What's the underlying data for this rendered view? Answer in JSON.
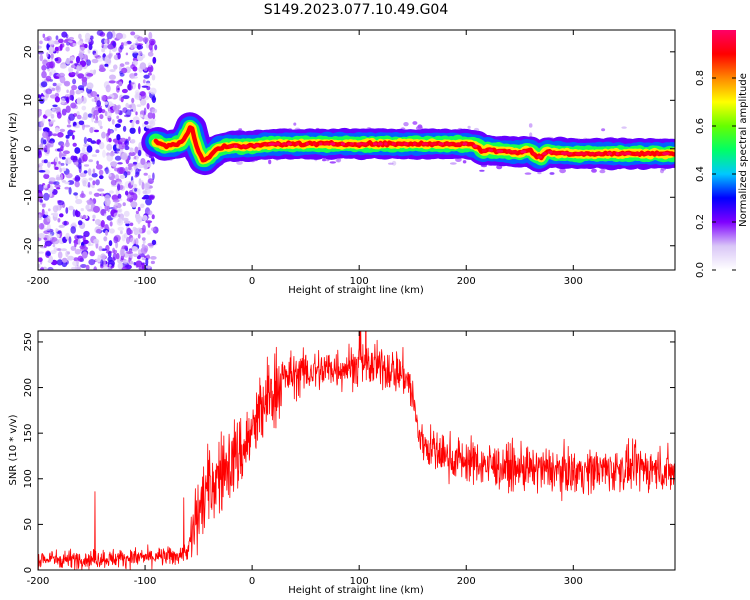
{
  "title": "S149.2023.077.10.49.G04",
  "chart_data": [
    {
      "type": "heatmap",
      "xlabel": "Height of straight line (km)",
      "ylabel": "Frequency (Hz)",
      "xlim": [
        -200,
        395
      ],
      "ylim": [
        -25,
        24.5
      ],
      "xticks": [
        -200,
        -100,
        0,
        100,
        200,
        300
      ],
      "yticks": [
        -20,
        -10,
        0,
        10,
        20
      ],
      "noise_region": {
        "x": [
          -200,
          -90
        ],
        "y": [
          -25,
          24
        ]
      },
      "ridge": {
        "x": [
          -90,
          -85,
          -80,
          -75,
          -70,
          -65,
          -60,
          -57,
          -55,
          -50,
          -45,
          -40,
          -35,
          -30,
          -20,
          -10,
          0,
          10,
          20,
          40,
          60,
          80,
          100,
          120,
          140,
          160,
          180,
          200,
          210,
          215,
          220,
          230,
          240,
          250,
          255,
          260,
          265,
          270,
          275,
          280,
          300,
          320,
          340,
          360,
          380,
          395
        ],
        "y": [
          1.5,
          1.0,
          0.5,
          0.8,
          1.0,
          1.5,
          3.5,
          5.0,
          3.0,
          -0.5,
          -2.5,
          -1.5,
          -0.5,
          0.2,
          0.5,
          0.5,
          0.5,
          0.8,
          1.0,
          1.0,
          1.0,
          1.0,
          1.0,
          1.0,
          1.0,
          1.0,
          1.0,
          1.0,
          0.5,
          -0.5,
          -0.2,
          -0.5,
          -0.5,
          -0.8,
          -0.5,
          -0.3,
          -1.5,
          -1.8,
          -0.5,
          -0.8,
          -1.0,
          -1.0,
          -1.0,
          -1.0,
          -1.0,
          -1.0
        ]
      },
      "colorbar": {
        "label": "Normalized spectral amplitude",
        "range": [
          0,
          1
        ],
        "ticks": [
          0.0,
          0.2,
          0.4,
          0.6,
          0.8
        ],
        "tick_labels": [
          "0.0",
          "0.2",
          "0.4",
          "0.6",
          "0.8"
        ],
        "colors": [
          "#ffffff",
          "#d9c6f7",
          "#7f00ff",
          "#0000ff",
          "#00c8ff",
          "#00ff66",
          "#66ff00",
          "#ffff00",
          "#ff8800",
          "#ff0000",
          "#ff0066"
        ]
      }
    },
    {
      "type": "line",
      "xlabel": "Height of straight line (km)",
      "ylabel": "SNR (10 * v/v)",
      "xlim": [
        -200,
        395
      ],
      "ylim": [
        0,
        262
      ],
      "xticks": [
        -200,
        -100,
        0,
        100,
        200,
        300
      ],
      "yticks": [
        0,
        50,
        100,
        150,
        200,
        250
      ],
      "line_color": "#ff0000",
      "series": [
        {
          "x": [
            -200,
            -150,
            -100,
            -70,
            -60,
            -55,
            -50,
            -45,
            -40,
            -30,
            -20,
            -10,
            0,
            10,
            20,
            30,
            40,
            60,
            80,
            100,
            120,
            130,
            140,
            145,
            150,
            155,
            160,
            170,
            180,
            200,
            220,
            240,
            260,
            280,
            300,
            320,
            340,
            360,
            380,
            395
          ],
          "values": [
            12,
            12,
            14,
            15,
            22,
            40,
            65,
            80,
            90,
            105,
            118,
            130,
            150,
            178,
            198,
            210,
            215,
            218,
            222,
            225,
            222,
            220,
            215,
            210,
            190,
            150,
            140,
            130,
            125,
            120,
            115,
            112,
            110,
            110,
            108,
            110,
            110,
            112,
            110,
            108
          ]
        }
      ]
    }
  ]
}
